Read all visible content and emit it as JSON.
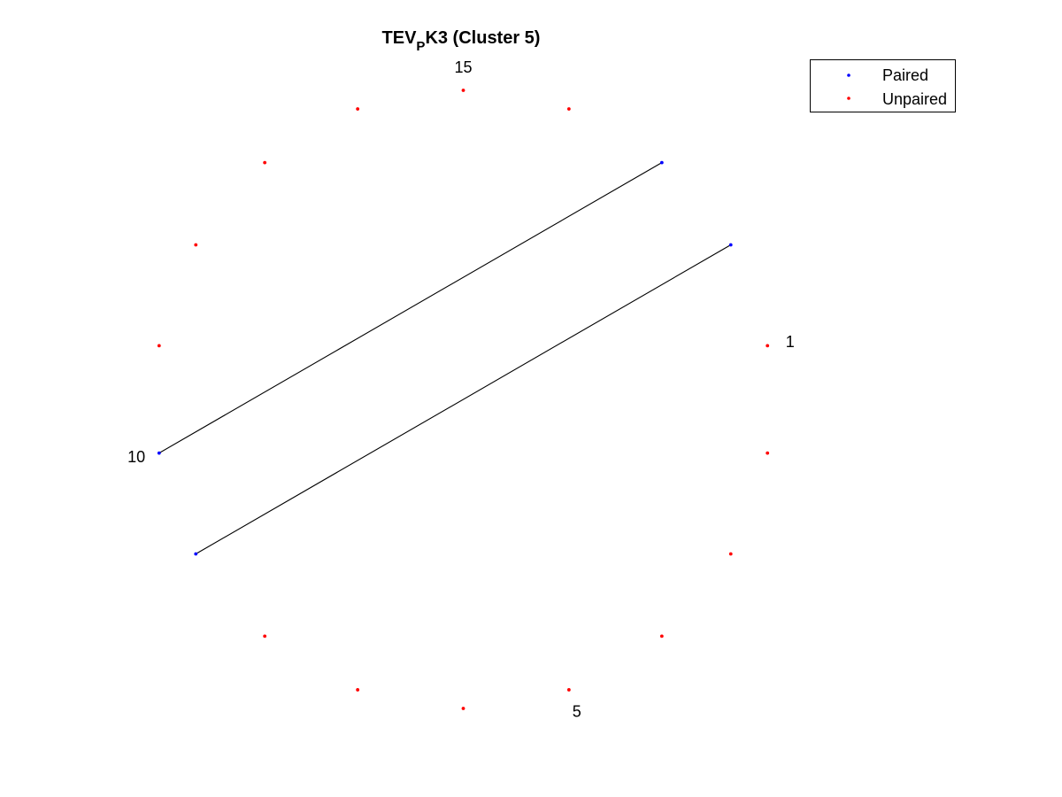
{
  "chart_data": {
    "type": "scatter",
    "subtype": "circular-pairing-diagram",
    "title": {
      "prefix": "TEV",
      "subscript": "P",
      "suffix": "K3 (Cluster 5)"
    },
    "n_positions": 18,
    "first_position_angle_deg": 10,
    "positions": [
      {
        "index": 1,
        "status": "Unpaired"
      },
      {
        "index": 2,
        "status": "Unpaired"
      },
      {
        "index": 3,
        "status": "Unpaired"
      },
      {
        "index": 4,
        "status": "Unpaired"
      },
      {
        "index": 5,
        "status": "Unpaired"
      },
      {
        "index": 6,
        "status": "Unpaired"
      },
      {
        "index": 7,
        "status": "Unpaired"
      },
      {
        "index": 8,
        "status": "Unpaired"
      },
      {
        "index": 9,
        "status": "Paired"
      },
      {
        "index": 10,
        "status": "Paired"
      },
      {
        "index": 11,
        "status": "Unpaired"
      },
      {
        "index": 12,
        "status": "Unpaired"
      },
      {
        "index": 13,
        "status": "Unpaired"
      },
      {
        "index": 14,
        "status": "Unpaired"
      },
      {
        "index": 15,
        "status": "Unpaired"
      },
      {
        "index": 16,
        "status": "Unpaired"
      },
      {
        "index": 17,
        "status": "Paired"
      },
      {
        "index": 18,
        "status": "Paired"
      }
    ],
    "pairs": [
      [
        9,
        18
      ],
      [
        10,
        17
      ]
    ],
    "labeled_positions": [
      "1",
      "5",
      "10",
      "15"
    ],
    "legend": [
      {
        "label": "Paired",
        "color": "#0000ff"
      },
      {
        "label": "Unpaired",
        "color": "#ff0000"
      }
    ],
    "legend_location": "top-right",
    "axes_visible": false,
    "pair_line_color": "#000000"
  }
}
